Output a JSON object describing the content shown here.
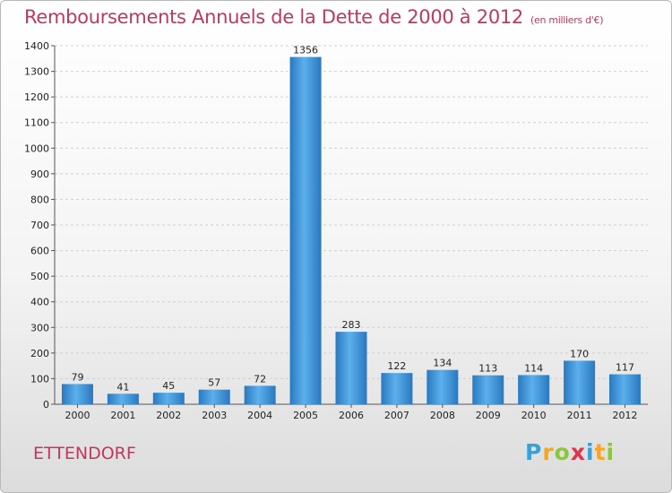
{
  "header": {
    "title": "Remboursements Annuels de la Dette de 2000 à 2012",
    "subtitle": "(en milliers d'€)"
  },
  "footer": {
    "commune": "ETTENDORF",
    "logo": [
      "P",
      "r",
      "o",
      "x",
      "i",
      "t",
      "i"
    ],
    "logo_colors": [
      "#3aa0d8",
      "#f5a623",
      "#8cc63f",
      "#e0344b",
      "#3aa0d8",
      "#f5a623",
      "#8cc63f"
    ]
  },
  "chart_data": {
    "type": "bar",
    "title": "Remboursements Annuels de la Dette de 2000 à 2012",
    "subtitle": "(en milliers d'€)",
    "categories": [
      "2000",
      "2001",
      "2002",
      "2003",
      "2004",
      "2005",
      "2006",
      "2007",
      "2008",
      "2009",
      "2010",
      "2011",
      "2012"
    ],
    "values": [
      79,
      41,
      45,
      57,
      72,
      1356,
      283,
      122,
      134,
      113,
      114,
      170,
      117
    ],
    "ylim": [
      0,
      1400
    ],
    "yticks": [
      0,
      100,
      200,
      300,
      400,
      500,
      600,
      700,
      800,
      900,
      1000,
      1100,
      1200,
      1300,
      1400
    ],
    "grid": true,
    "legend": "none",
    "bar_color": "#3a93d8"
  }
}
